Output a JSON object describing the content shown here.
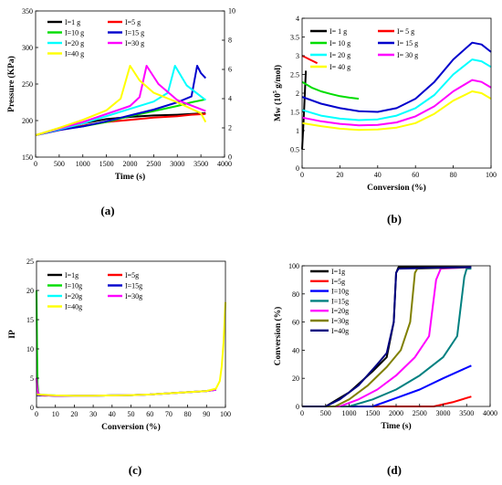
{
  "chart_data": [
    {
      "type": "line",
      "panel_label": "(a)",
      "xlabel": "Time (s)",
      "ylabel": "Pressure (KPa)",
      "xlim": [
        0,
        4000
      ],
      "ylim": [
        150,
        350
      ],
      "y2lim": [
        0,
        10
      ],
      "xticks": [
        "0",
        "500",
        "1000",
        "1500",
        "2000",
        "2500",
        "3000",
        "3500",
        "4000"
      ],
      "yticks": [
        "150",
        "200",
        "250",
        "300",
        "350"
      ],
      "y2ticks": [
        "0",
        "2",
        "4",
        "6",
        "8",
        "10"
      ],
      "grid": false,
      "legend_position": "top-left",
      "series": [
        {
          "name": "I=1 g",
          "color": "#000000",
          "x": [
            0,
            500,
            1000,
            1500,
            2000,
            2500,
            3000,
            3300,
            3600
          ],
          "y": [
            180,
            188,
            196,
            202,
            205,
            207,
            208,
            209,
            210
          ]
        },
        {
          "name": "I=5 g",
          "color": "#ff0000",
          "x": [
            0,
            500,
            1000,
            1500,
            2000,
            2500,
            3000,
            3300,
            3600
          ],
          "y": [
            180,
            187,
            193,
            198,
            201,
            204,
            206,
            208,
            209
          ]
        },
        {
          "name": "I=10 g",
          "color": "#00dd00",
          "x": [
            0,
            500,
            1000,
            1500,
            2000,
            2500,
            3000,
            3300,
            3600
          ],
          "y": [
            180,
            188,
            192,
            198,
            206,
            213,
            220,
            225,
            229
          ]
        },
        {
          "name": "I=15 g",
          "color": "#0000cc",
          "x": [
            0,
            500,
            1000,
            1500,
            2000,
            2500,
            3000,
            3300,
            3420,
            3500,
            3600
          ],
          "y": [
            180,
            187,
            192,
            199,
            207,
            215,
            225,
            233,
            275,
            265,
            258
          ]
        },
        {
          "name": "I=20 g",
          "color": "#00ffff",
          "x": [
            0,
            500,
            1000,
            1500,
            2000,
            2500,
            2800,
            2950,
            3200,
            3600
          ],
          "y": [
            180,
            188,
            196,
            206,
            216,
            226,
            238,
            275,
            248,
            228
          ]
        },
        {
          "name": "I=30 g",
          "color": "#ff00ff",
          "x": [
            0,
            500,
            1000,
            1500,
            2000,
            2200,
            2350,
            2600,
            3000,
            3600
          ],
          "y": [
            180,
            189,
            198,
            209,
            220,
            232,
            275,
            250,
            228,
            213
          ]
        },
        {
          "name": "I=40 g",
          "color": "#ffff00",
          "x": [
            0,
            500,
            1000,
            1500,
            1800,
            2000,
            2200,
            2500,
            3000,
            3500,
            3600
          ],
          "y": [
            180,
            190,
            201,
            214,
            230,
            275,
            255,
            238,
            225,
            210,
            198
          ]
        }
      ]
    },
    {
      "type": "line",
      "panel_label": "(b)",
      "xlabel": "Conversion (%)",
      "ylabel": "Mw (10",
      "ylabel_sup": "5",
      "ylabel_rest": " g/mol)",
      "xlim": [
        0,
        100
      ],
      "ylim": [
        0,
        4
      ],
      "xticks": [
        "0",
        "20",
        "40",
        "60",
        "80",
        "100"
      ],
      "yticks": [
        "0",
        "0.5",
        "1",
        "1.5",
        "2",
        "2.5",
        "3",
        "3.5",
        "4"
      ],
      "grid": false,
      "legend_position": "top-left",
      "series": [
        {
          "name": "I= 1 g",
          "color": "#000000",
          "x": [
            0,
            1,
            2
          ],
          "y": [
            0.5,
            1.5,
            2.6
          ]
        },
        {
          "name": "I= 5 g",
          "color": "#ff0000",
          "x": [
            0,
            2,
            4,
            6,
            8
          ],
          "y": [
            3.0,
            2.95,
            2.9,
            2.85,
            2.8
          ]
        },
        {
          "name": "I= 10 g",
          "color": "#00dd00",
          "x": [
            0,
            5,
            10,
            15,
            20,
            25,
            30
          ],
          "y": [
            2.3,
            2.15,
            2.05,
            1.98,
            1.92,
            1.88,
            1.85
          ]
        },
        {
          "name": "I= 15 g",
          "color": "#0000cc",
          "x": [
            0,
            10,
            20,
            30,
            40,
            50,
            60,
            70,
            80,
            90,
            95,
            100
          ],
          "y": [
            1.9,
            1.72,
            1.6,
            1.52,
            1.5,
            1.6,
            1.85,
            2.3,
            2.9,
            3.35,
            3.3,
            3.1
          ]
        },
        {
          "name": "I= 20 g",
          "color": "#00ffff",
          "x": [
            0,
            10,
            20,
            30,
            40,
            50,
            60,
            70,
            80,
            90,
            95,
            100
          ],
          "y": [
            1.55,
            1.4,
            1.32,
            1.28,
            1.3,
            1.4,
            1.6,
            1.95,
            2.5,
            2.9,
            2.85,
            2.7
          ]
        },
        {
          "name": "I= 30 g",
          "color": "#ff00ff",
          "x": [
            0,
            10,
            20,
            30,
            40,
            50,
            60,
            70,
            80,
            90,
            95,
            100
          ],
          "y": [
            1.35,
            1.25,
            1.18,
            1.14,
            1.15,
            1.22,
            1.38,
            1.65,
            2.05,
            2.35,
            2.3,
            2.15
          ]
        },
        {
          "name": "I= 40 g",
          "color": "#ffff00",
          "x": [
            0,
            10,
            20,
            30,
            40,
            50,
            60,
            70,
            80,
            90,
            95,
            100
          ],
          "y": [
            1.2,
            1.12,
            1.05,
            1.02,
            1.03,
            1.08,
            1.2,
            1.45,
            1.8,
            2.05,
            2.0,
            1.85
          ]
        }
      ]
    },
    {
      "type": "line",
      "panel_label": "(c)",
      "xlabel": "Conversion (%)",
      "ylabel": "IP",
      "xlim": [
        0,
        100
      ],
      "ylim": [
        0,
        25
      ],
      "xticks": [
        "0",
        "10",
        "20",
        "30",
        "40",
        "50",
        "60",
        "70",
        "80",
        "90",
        "100"
      ],
      "yticks": [
        "0",
        "5",
        "10",
        "15",
        "20",
        "25"
      ],
      "grid": false,
      "legend_position": "top-left",
      "series": [
        {
          "name": "I=1g",
          "color": "#000000",
          "x": [
            0,
            10,
            20,
            30,
            40,
            50,
            60,
            70,
            80,
            90,
            95
          ],
          "y": [
            2.1,
            2.0,
            2.0,
            2.0,
            2.05,
            2.1,
            2.2,
            2.4,
            2.6,
            2.8,
            3.0
          ]
        },
        {
          "name": "I=5g",
          "color": "#ff0000",
          "x": [
            0,
            2,
            5
          ],
          "y": [
            2.1,
            2.05,
            2.0
          ]
        },
        {
          "name": "I=10g",
          "color": "#00dd00",
          "x": [
            0,
            0.3,
            0.6,
            1,
            3,
            6
          ],
          "y": [
            20,
            10,
            4,
            2.3,
            2.1,
            2.0
          ]
        },
        {
          "name": "I=15g",
          "color": "#0000cc",
          "x": [
            0,
            10,
            20,
            30,
            40,
            50,
            60,
            70,
            80,
            90,
            95
          ],
          "y": [
            2.1,
            2.0,
            2.0,
            2.0,
            2.05,
            2.1,
            2.2,
            2.4,
            2.6,
            2.8,
            3.0
          ]
        },
        {
          "name": "I=20g",
          "color": "#00ffff",
          "x": [
            0,
            10,
            20,
            30,
            40,
            50,
            60,
            70,
            80,
            90,
            95
          ],
          "y": [
            2.2,
            2.05,
            2.0,
            2.0,
            2.05,
            2.1,
            2.2,
            2.4,
            2.6,
            2.8,
            3.0
          ]
        },
        {
          "name": "I=30g",
          "color": "#ff00ff",
          "x": [
            0,
            0.5,
            1,
            3,
            10,
            20,
            30,
            40,
            50,
            60,
            70,
            80,
            90,
            95
          ],
          "y": [
            5,
            3,
            2.3,
            2.1,
            2.0,
            2.0,
            2.0,
            2.05,
            2.1,
            2.2,
            2.4,
            2.6,
            2.8,
            3.0
          ]
        },
        {
          "name": "I=40g",
          "color": "#ffff00",
          "x": [
            0,
            10,
            20,
            30,
            40,
            50,
            60,
            70,
            80,
            90,
            95,
            97,
            98,
            99,
            100
          ],
          "y": [
            2.2,
            2.05,
            2.0,
            2.0,
            2.05,
            2.1,
            2.2,
            2.4,
            2.6,
            2.8,
            3.2,
            4.5,
            7,
            11,
            18
          ]
        }
      ]
    },
    {
      "type": "line",
      "panel_label": "(d)",
      "xlabel": "Time (s)",
      "ylabel": "Conversion (%)",
      "xlim": [
        0,
        4000
      ],
      "ylim": [
        0,
        100
      ],
      "xticks": [
        "0",
        "500",
        "1000",
        "1500",
        "2000",
        "2500",
        "3000",
        "3500",
        "4000"
      ],
      "yticks": [
        "0",
        "20",
        "40",
        "60",
        "80",
        "100"
      ],
      "grid": false,
      "legend_position": "top-left",
      "series": [
        {
          "name": "I=1g",
          "color": "#000000",
          "x": [
            0,
            500,
            1000,
            1500,
            1800,
            1950,
            2000,
            2050,
            3600
          ],
          "y": [
            0,
            0,
            10,
            25,
            35,
            60,
            95,
            99,
            99
          ]
        },
        {
          "name": "I=5g",
          "color": "#ff0000",
          "x": [
            0,
            2800,
            3200,
            3600
          ],
          "y": [
            0,
            0,
            3,
            7
          ]
        },
        {
          "name": "I=10g",
          "color": "#0000ff",
          "x": [
            0,
            1500,
            2000,
            2500,
            3000,
            3600
          ],
          "y": [
            0,
            0,
            6,
            12,
            20,
            29
          ]
        },
        {
          "name": "I=15g",
          "color": "#008080",
          "x": [
            0,
            1000,
            1500,
            2000,
            2500,
            3000,
            3300,
            3450,
            3500,
            3600
          ],
          "y": [
            0,
            0,
            5,
            12,
            22,
            35,
            50,
            92,
            98,
            98
          ]
        },
        {
          "name": "I=20g",
          "color": "#ff00ff",
          "x": [
            0,
            800,
            1200,
            1600,
            2000,
            2400,
            2700,
            2850,
            2950,
            3600
          ],
          "y": [
            0,
            0,
            5,
            12,
            22,
            35,
            50,
            90,
            98,
            99
          ]
        },
        {
          "name": "I=30g",
          "color": "#808000",
          "x": [
            0,
            700,
            1000,
            1400,
            1800,
            2100,
            2300,
            2400,
            2450,
            3600
          ],
          "y": [
            0,
            0,
            5,
            15,
            28,
            40,
            60,
            95,
            98,
            99
          ]
        },
        {
          "name": "I=40g",
          "color": "#000080",
          "x": [
            0,
            500,
            800,
            1200,
            1600,
            1800,
            1950,
            2000,
            2050,
            3600
          ],
          "y": [
            0,
            0,
            5,
            15,
            30,
            38,
            60,
            95,
            98,
            99
          ]
        }
      ]
    }
  ]
}
